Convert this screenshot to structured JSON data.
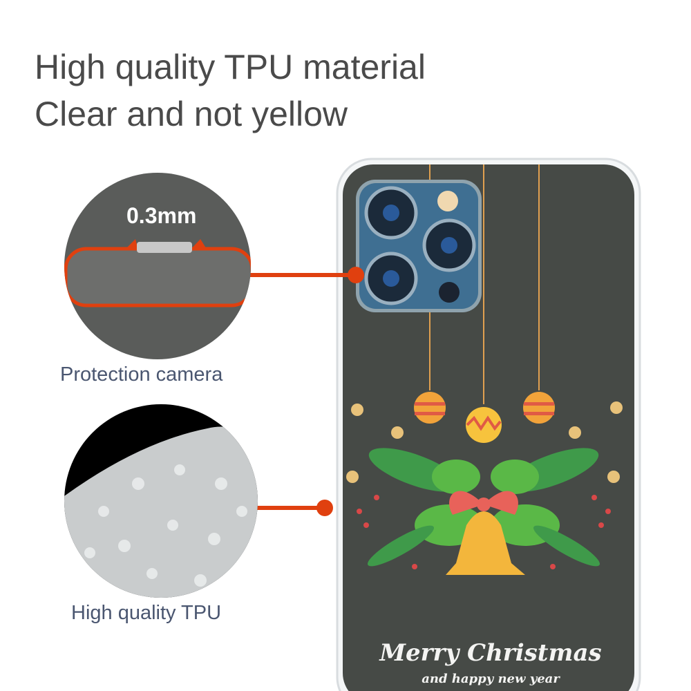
{
  "headline": {
    "line1": "High quality TPU material",
    "line2": "Clear and not yellow"
  },
  "callouts": [
    {
      "thickness": "0.3mm",
      "caption": "Protection camera"
    },
    {
      "caption": "High quality TPU"
    }
  ],
  "case_print": {
    "title": "Merry Christmas",
    "subtitle": "and happy new year"
  },
  "colors": {
    "accent": "#e0400f",
    "case_back": "#464a46",
    "text": "#4a4a4a",
    "caption": "#4a5670"
  }
}
